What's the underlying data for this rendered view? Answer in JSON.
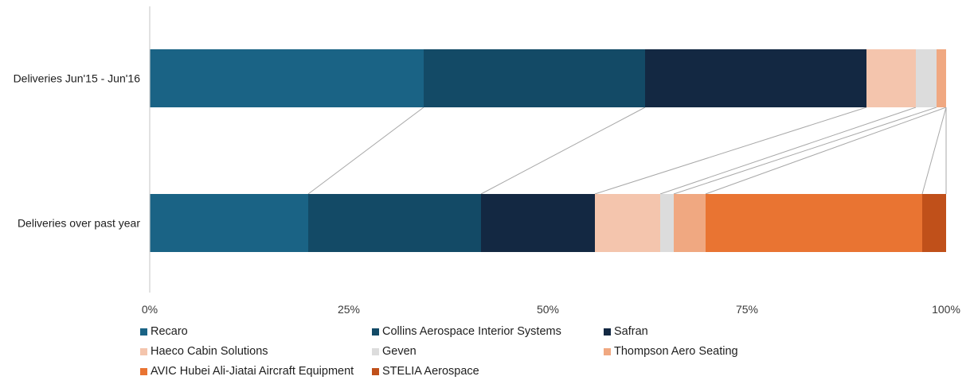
{
  "chart_data": {
    "type": "bar",
    "orientation": "horizontal",
    "stacked": true,
    "normalized": true,
    "categories": [
      "Deliveries Jun'15 - Jun'16",
      "Deliveries over past year"
    ],
    "series": [
      {
        "name": "Recaro",
        "color": "#1a6385",
        "values": [
          34.4,
          19.9
        ]
      },
      {
        "name": "Collins Aerospace Interior Systems",
        "color": "#134a66",
        "values": [
          27.8,
          21.7
        ]
      },
      {
        "name": "Safran",
        "color": "#132842",
        "values": [
          27.8,
          14.3
        ]
      },
      {
        "name": "Haeco Cabin Solutions",
        "color": "#f4c5ad",
        "values": [
          6.2,
          8.2
        ]
      },
      {
        "name": "Geven",
        "color": "#dcdcdc",
        "values": [
          2.6,
          1.7
        ]
      },
      {
        "name": "Thompson Aero Seating",
        "color": "#f0a881",
        "values": [
          1.2,
          4.0
        ]
      },
      {
        "name": "AVIC Hubei Ali-Jiatai Aircraft Equipment",
        "color": "#e97432",
        "values": [
          0,
          27.2
        ]
      },
      {
        "name": "STELIA Aerospace",
        "color": "#c0501a",
        "values": [
          0,
          3.0
        ]
      }
    ],
    "x_ticks": [
      "0%",
      "25%",
      "50%",
      "75%",
      "100%"
    ],
    "xlim": [
      0,
      100
    ],
    "grid": false,
    "legend_position": "bottom",
    "connector_lines": true
  }
}
